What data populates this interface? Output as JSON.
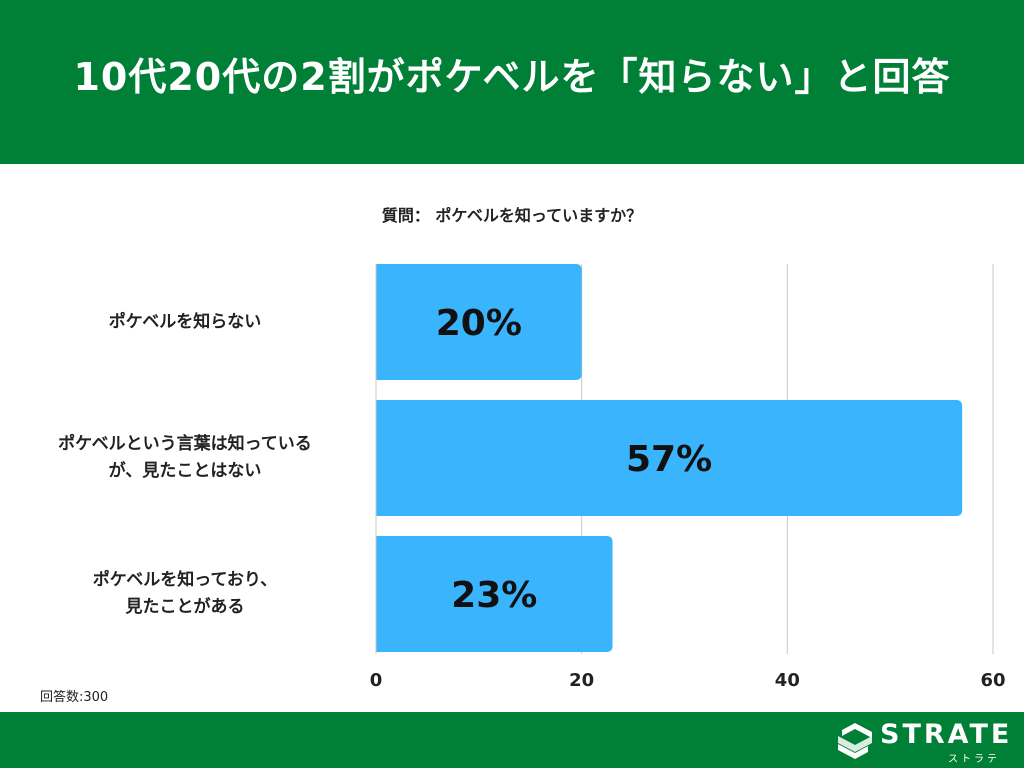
{
  "header": {
    "title": "10代20代の2割がポケベルを「知らない」と回答"
  },
  "colors": {
    "header_bg": "#007f36",
    "bar": "#3ab4fd",
    "grid": "#c8c8c8",
    "text": "#222222"
  },
  "chart_data": {
    "type": "bar",
    "orientation": "horizontal",
    "title": "質問： ポケベルを知っていますか？",
    "categories": [
      [
        "ポケベルを知らない"
      ],
      [
        "ポケベルという言葉は知っている",
        "が、見たことはない"
      ],
      [
        "ポケベルを知っており、",
        "見たことがある"
      ]
    ],
    "values": [
      20,
      57,
      23
    ],
    "value_labels": [
      "20%",
      "57%",
      "23%"
    ],
    "xlim": [
      0,
      60
    ],
    "xticks": [
      "0",
      "20",
      "40",
      "60"
    ],
    "grid": true,
    "note": "回答数:300"
  },
  "footer": {
    "logo_text": "STRATE",
    "logo_sub": "ストラテ",
    "logo_icon": "strate-s-icon"
  }
}
